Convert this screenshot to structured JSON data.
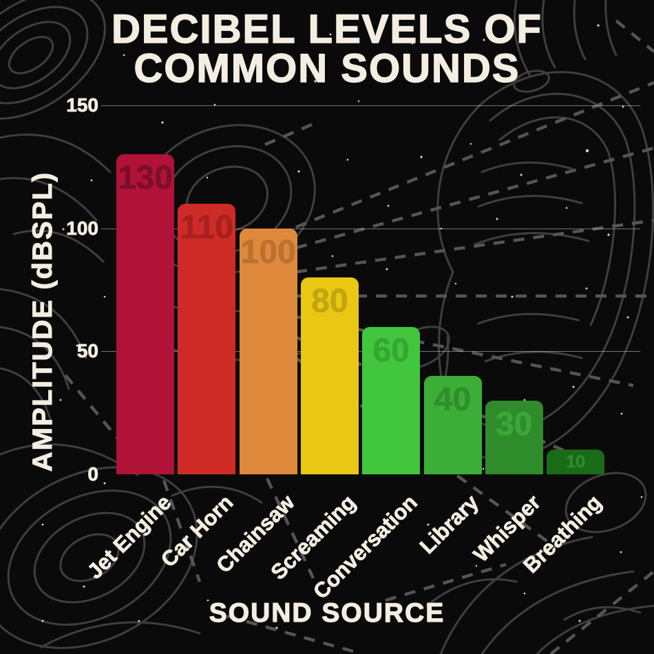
{
  "title": {
    "line1": "DECIBEL LEVELS OF",
    "line2": "COMMON SOUNDS"
  },
  "y_axis": {
    "label": "AMPLITUDE (dBSPL)",
    "ticks": [
      "150",
      "100",
      "50",
      "0"
    ]
  },
  "x_axis": {
    "label": "SOUND SOURCE"
  },
  "chart_data": {
    "type": "bar",
    "title": "DECIBEL LEVELS OF COMMON SOUNDS",
    "xlabel": "SOUND SOURCE",
    "ylabel": "AMPLITUDE (dBSPL)",
    "categories": [
      "Jet Engine",
      "Car Horn",
      "Chainsaw",
      "Screaming",
      "Conversation",
      "Library",
      "Whisper",
      "Breathing"
    ],
    "values": [
      130,
      110,
      100,
      80,
      60,
      40,
      30,
      10
    ],
    "ylim": [
      0,
      150
    ],
    "yticks": [
      0,
      50,
      100,
      150
    ],
    "grid": true,
    "legend": false,
    "bar_colors": [
      "#b11238",
      "#ce2b27",
      "#de893c",
      "#e9c713",
      "#41c63d",
      "#3cae38",
      "#2f8c2b",
      "#1a6b18"
    ],
    "value_label_colors": [
      "#7d0e2a",
      "#a6211f",
      "#bd702f",
      "#c2a511",
      "#34a731",
      "#2f8f2c",
      "#3ba737",
      "#2f8c2c"
    ]
  },
  "colors": {
    "background": "#0b0a0a",
    "text_cream": "#f3eee1",
    "gridline": "#e2e2da",
    "artwork_stroke": "#3f3f3f",
    "dashed_rays": "#555555"
  }
}
